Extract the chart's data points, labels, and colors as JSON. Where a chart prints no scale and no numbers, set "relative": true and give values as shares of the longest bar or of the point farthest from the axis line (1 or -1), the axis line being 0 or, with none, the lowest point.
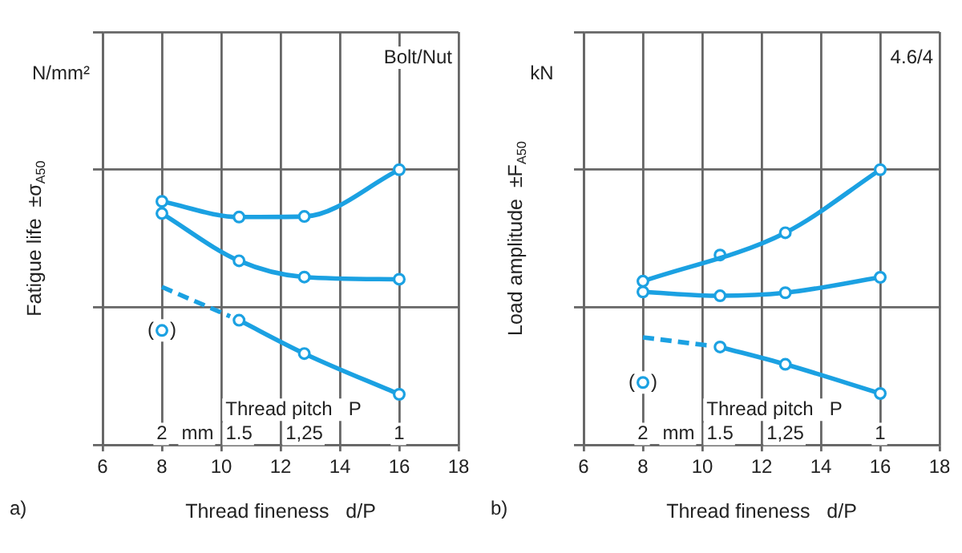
{
  "chart_data": [
    {
      "type": "line",
      "relative": true,
      "xlim": [
        6,
        18
      ],
      "xticks": [
        6,
        8,
        10,
        12,
        14,
        16,
        18
      ],
      "xlabel": "Thread fineness   d/P",
      "ylabel": "Fatigue life  ±σ$_{A50}$",
      "grid": true,
      "marker": "circle",
      "line_style": "solid",
      "annotations": [
        "a)",
        "N/mm²",
        "Bolt/Nut",
        "Thread pitch   P",
        {
          "text": "2",
          "x": 8,
          "y": 0.04
        },
        {
          "text": "mm",
          "x": 9.2,
          "y": 0.04
        },
        {
          "text": "1.5",
          "x": 10.6,
          "y": 0.04
        },
        {
          "text": "1,25",
          "x": 12.8,
          "y": 0.04
        },
        {
          "text": "1",
          "x": 16,
          "y": 0.04
        },
        {
          "text": "(   )",
          "x": 8,
          "y": 0.416
        }
      ],
      "series": [
        {
          "color": "#1ba1e2",
          "x": [
            8,
            10.6,
            12.8,
            16
          ],
          "values": [
            0.885,
            0.828,
            0.83,
            1
          ]
        },
        {
          "color": "#1ba1e2",
          "x": [
            8,
            10.6,
            12.8,
            16
          ],
          "values": [
            0.841,
            0.669,
            0.61,
            0.602
          ]
        },
        {
          "color": "#1ba1e2",
          "x": [
            8,
            10.3
          ],
          "values": [
            0.574,
            0.467
          ],
          "line_style": "dashed",
          "marker": "none"
        },
        {
          "color": "#1ba1e2",
          "x": [
            10.6,
            12.8,
            16
          ],
          "values": [
            0.453,
            0.332,
            0.184
          ]
        },
        {
          "type": "scatter",
          "color": "#1ba1e2",
          "x": [
            8
          ],
          "values": [
            0.416
          ]
        }
      ]
    },
    {
      "type": "line",
      "relative": true,
      "xlim": [
        6,
        18
      ],
      "xticks": [
        6,
        8,
        10,
        12,
        14,
        16,
        18
      ],
      "xlabel": "Thread fineness   d/P",
      "ylabel": "Load amplitude  ±F$_{A50}$",
      "grid": true,
      "marker": "circle",
      "line_style": "solid",
      "annotations": [
        "b)",
        "kN",
        "4.6/4",
        "Thread pitch   P",
        {
          "text": "2",
          "x": 8,
          "y": 0.04
        },
        {
          "text": "mm",
          "x": 9.2,
          "y": 0.04
        },
        {
          "text": "1.5",
          "x": 10.6,
          "y": 0.04
        },
        {
          "text": "1,25",
          "x": 12.8,
          "y": 0.04
        },
        {
          "text": "1",
          "x": 16,
          "y": 0.04
        },
        {
          "text": "(   )",
          "x": 8,
          "y": 0.227
        }
      ],
      "series": [
        {
          "color": "#1ba1e2",
          "x": [
            8,
            12.8,
            16
          ],
          "values": [
            0.595,
            0.771,
            1
          ]
        },
        {
          "type": "scatter",
          "color": "#1ba1e2",
          "x": [
            10.6
          ],
          "values": [
            0.69
          ]
        },
        {
          "color": "#1ba1e2",
          "x": [
            8,
            10.6,
            12.8,
            16
          ],
          "values": [
            0.556,
            0.542,
            0.553,
            0.609
          ]
        },
        {
          "color": "#1ba1e2",
          "x": [
            8,
            10.3
          ],
          "values": [
            0.391,
            0.36
          ],
          "line_style": "dashed",
          "marker": "none"
        },
        {
          "color": "#1ba1e2",
          "x": [
            10.6,
            12.8,
            16
          ],
          "values": [
            0.356,
            0.293,
            0.187
          ]
        },
        {
          "type": "scatter",
          "color": "#1ba1e2",
          "x": [
            8
          ],
          "values": [
            0.227
          ]
        }
      ]
    }
  ]
}
